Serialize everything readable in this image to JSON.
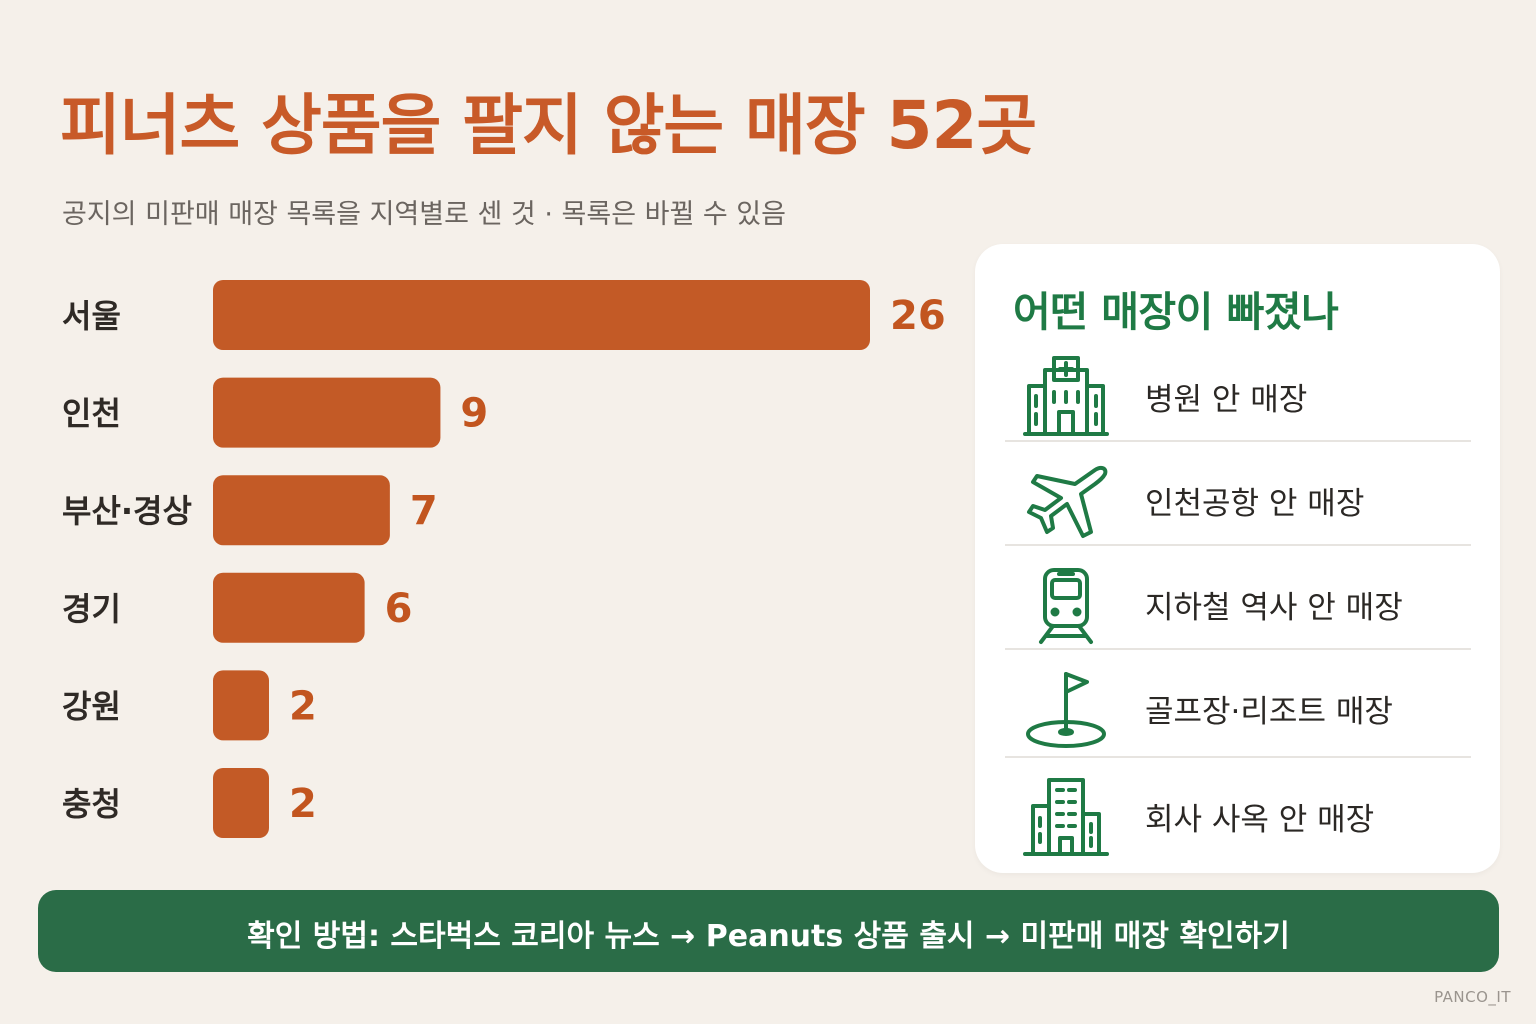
{
  "header": {
    "title": "피너츠 상품을 팔지 않는 매장 52곳",
    "subtitle": "공지의 미판매 매장 목록을 지역별로 센 것 · 목록은 바뀔 수 있음"
  },
  "chart_data": {
    "type": "bar",
    "orientation": "horizontal",
    "categories": [
      "서울",
      "인천",
      "부산·경상",
      "경기",
      "강원",
      "충청"
    ],
    "values": [
      26,
      9,
      7,
      6,
      2,
      2
    ],
    "grid": false,
    "legend": "none",
    "bar_color": "#c35a26",
    "label_color": "#c2551f"
  },
  "card": {
    "title": "어떤 매장이 빠졌나",
    "items": [
      {
        "icon": "hospital-icon",
        "label": "병원 안 매장"
      },
      {
        "icon": "airplane-icon",
        "label": "인천공항 안 매장"
      },
      {
        "icon": "subway-train-icon",
        "label": "지하철 역사 안 매장"
      },
      {
        "icon": "golf-flag-icon",
        "label": "골프장·리조트 매장"
      },
      {
        "icon": "office-building-icon",
        "label": "회사 사옥 안 매장"
      }
    ],
    "accent": "#1f7a45"
  },
  "footer": {
    "text": "확인 방법: 스타벅스 코리아 뉴스 → Peanuts 상품 출시 → 미판매 매장 확인하기"
  },
  "credit": "PANCO_IT"
}
